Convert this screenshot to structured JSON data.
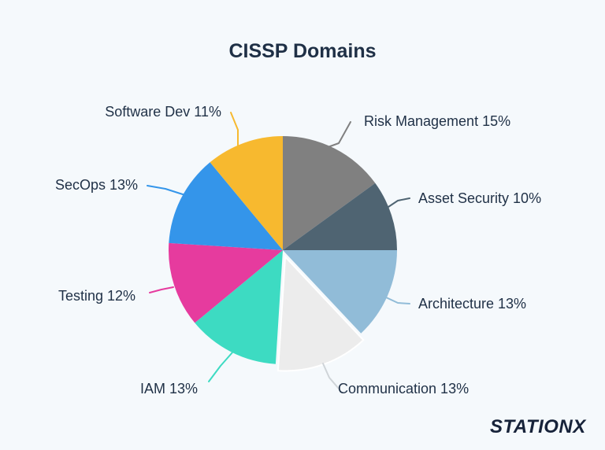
{
  "chart_data": {
    "type": "pie",
    "title": "CISSP Domains",
    "slices": [
      {
        "label": "Risk Management 15%",
        "value": 15,
        "color": "#808080"
      },
      {
        "label": "Asset Security 10%",
        "value": 10,
        "color": "#4f6472"
      },
      {
        "label": "Architecture 13%",
        "value": 13,
        "color": "#91bcd8"
      },
      {
        "label": "Communication 13%",
        "value": 13,
        "color": "#ececec",
        "exploded": true
      },
      {
        "label": "IAM 13%",
        "value": 13,
        "color": "#3ddbc2"
      },
      {
        "label": "Testing 12%",
        "value": 12,
        "color": "#e63b9e"
      },
      {
        "label": "SecOps 13%",
        "value": 13,
        "color": "#3495ea"
      },
      {
        "label": "Software Dev 11%",
        "value": 11,
        "color": "#f7b92f"
      }
    ]
  },
  "branding": {
    "logo_text": "STATIONX",
    "logo_color": "#17233a"
  }
}
